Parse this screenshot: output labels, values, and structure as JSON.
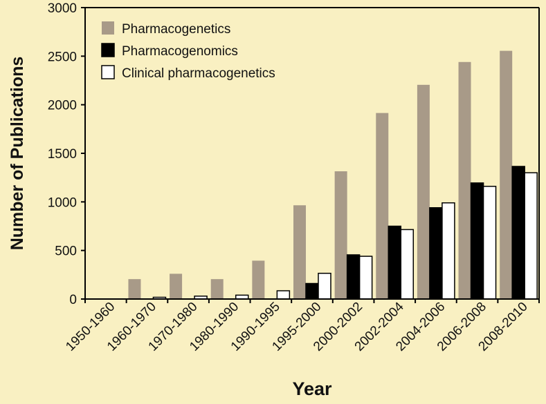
{
  "chart_data": {
    "type": "bar",
    "xlabel": "Year",
    "ylabel": "Number of Publications",
    "ylim": [
      0,
      3000
    ],
    "yticks": [
      "0",
      "500",
      "1000",
      "1500",
      "2000",
      "2500",
      "3000"
    ],
    "categories": [
      "1950-1960",
      "1960-1970",
      "1970-1980",
      "1980-1990",
      "1990-1995",
      "1995-2000",
      "2000-2002",
      "2002-2004",
      "2004-2006",
      "2006-2008",
      "2008-2010"
    ],
    "series": [
      {
        "name": "Pharmacogenetics",
        "color": "#a89a88",
        "values": [
          0,
          205,
          260,
          205,
          395,
          965,
          1315,
          1915,
          2205,
          2440,
          2555
        ]
      },
      {
        "name": "Pharmacogenomics",
        "color": "#000000",
        "values": [
          0,
          0,
          0,
          0,
          0,
          160,
          455,
          750,
          940,
          1195,
          1365
        ]
      },
      {
        "name": "Clinical pharmacogenetics",
        "color": "#ffffff",
        "values": [
          0,
          18,
          30,
          40,
          85,
          265,
          440,
          715,
          990,
          1160,
          1300
        ]
      }
    ],
    "legend": "top-left",
    "grid": false
  }
}
